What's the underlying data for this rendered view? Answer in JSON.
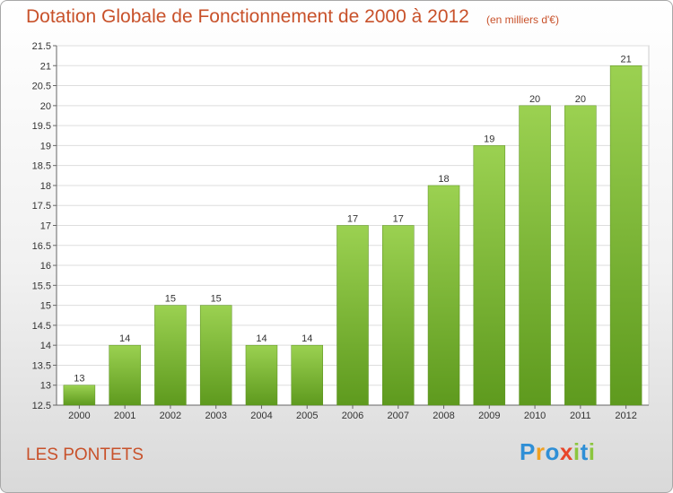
{
  "chart_data": {
    "type": "bar",
    "title": "Dotation Globale de Fonctionnement de 2000 à 2012",
    "subtitle": "(en milliers d'€)",
    "categories": [
      "2000",
      "2001",
      "2002",
      "2003",
      "2004",
      "2005",
      "2006",
      "2007",
      "2008",
      "2009",
      "2010",
      "2011",
      "2012"
    ],
    "values": [
      13,
      14,
      15,
      15,
      14,
      14,
      17,
      17,
      18,
      19,
      20,
      20,
      21
    ],
    "ylim": [
      12.5,
      21.5
    ],
    "yticks": [
      "12.5",
      "13",
      "13.5",
      "14",
      "14.5",
      "15",
      "15.5",
      "16",
      "16.5",
      "17",
      "17.5",
      "18",
      "18.5",
      "19",
      "19.5",
      "20",
      "20.5",
      "21",
      "21.5"
    ],
    "grid": true,
    "bar_color": "#7ab83a"
  },
  "commune": "LES PONTETS",
  "logo": {
    "letters": [
      "P",
      "r",
      "o",
      "x",
      "i",
      "t",
      "i"
    ],
    "colors": [
      "#2f8fd6",
      "#f0a020",
      "#2f8fd6",
      "#e8462a",
      "#8cc63f",
      "#2f8fd6",
      "#8cc63f"
    ]
  }
}
